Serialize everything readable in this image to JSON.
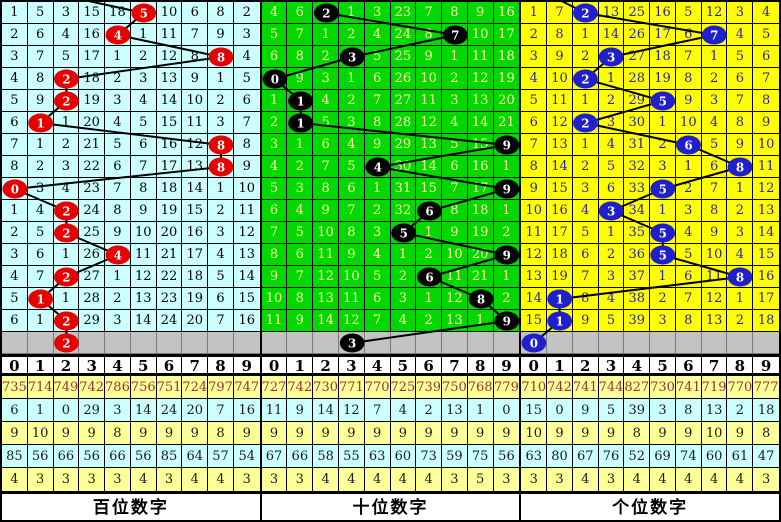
{
  "chart": {
    "columns": [
      "0",
      "1",
      "2",
      "3",
      "4",
      "5",
      "6",
      "7",
      "8",
      "9"
    ],
    "panels": [
      {
        "label": "百位数字",
        "panel_bg": "#ccffff",
        "cell_text_color": "#000000",
        "ball_color": "#e60000",
        "rows": [
          {
            "ball_col": 5,
            "cells": [
              "1",
              "5",
              "3",
              "15",
              "18",
              "5",
              "10",
              "6",
              "8",
              "2"
            ]
          },
          {
            "ball_col": 4,
            "cells": [
              "2",
              "6",
              "4",
              "16",
              "4",
              "1",
              "11",
              "7",
              "9",
              "3"
            ]
          },
          {
            "ball_col": 8,
            "cells": [
              "3",
              "7",
              "5",
              "17",
              "1",
              "2",
              "12",
              "8",
              "8",
              "4"
            ]
          },
          {
            "ball_col": 2,
            "cells": [
              "4",
              "8",
              "2",
              "18",
              "2",
              "3",
              "13",
              "9",
              "1",
              "5"
            ]
          },
          {
            "ball_col": 2,
            "cells": [
              "5",
              "9",
              "2",
              "19",
              "3",
              "4",
              "14",
              "10",
              "2",
              "6"
            ]
          },
          {
            "ball_col": 1,
            "cells": [
              "6",
              "1",
              "1",
              "20",
              "4",
              "5",
              "15",
              "11",
              "3",
              "7"
            ]
          },
          {
            "ball_col": 8,
            "cells": [
              "7",
              "1",
              "2",
              "21",
              "5",
              "6",
              "16",
              "12",
              "8",
              "8"
            ]
          },
          {
            "ball_col": 8,
            "cells": [
              "8",
              "2",
              "3",
              "22",
              "6",
              "7",
              "17",
              "13",
              "8",
              "9"
            ]
          },
          {
            "ball_col": 0,
            "cells": [
              "0",
              "3",
              "4",
              "23",
              "7",
              "8",
              "18",
              "14",
              "1",
              "10"
            ]
          },
          {
            "ball_col": 2,
            "cells": [
              "1",
              "4",
              "2",
              "24",
              "8",
              "9",
              "19",
              "15",
              "2",
              "11"
            ]
          },
          {
            "ball_col": 2,
            "cells": [
              "2",
              "5",
              "2",
              "25",
              "9",
              "10",
              "20",
              "16",
              "3",
              "12"
            ]
          },
          {
            "ball_col": 4,
            "cells": [
              "3",
              "6",
              "1",
              "26",
              "4",
              "11",
              "21",
              "17",
              "4",
              "13"
            ]
          },
          {
            "ball_col": 2,
            "cells": [
              "4",
              "7",
              "2",
              "27",
              "1",
              "12",
              "22",
              "18",
              "5",
              "14"
            ]
          },
          {
            "ball_col": 1,
            "cells": [
              "5",
              "1",
              "1",
              "28",
              "2",
              "13",
              "23",
              "19",
              "6",
              "15"
            ]
          },
          {
            "ball_col": 2,
            "cells": [
              "6",
              "1",
              "2",
              "29",
              "3",
              "14",
              "24",
              "20",
              "7",
              "16"
            ]
          }
        ],
        "predicted_col": 2,
        "predicted_digit": "2",
        "stats": [
          [
            "735",
            "714",
            "749",
            "742",
            "786",
            "756",
            "751",
            "724",
            "797",
            "747"
          ],
          [
            "6",
            "1",
            "0",
            "29",
            "3",
            "14",
            "24",
            "20",
            "7",
            "16"
          ],
          [
            "9",
            "10",
            "9",
            "9",
            "8",
            "9",
            "9",
            "9",
            "8",
            "9"
          ],
          [
            "85",
            "56",
            "66",
            "56",
            "66",
            "56",
            "85",
            "64",
            "57",
            "54"
          ],
          [
            "4",
            "3",
            "3",
            "3",
            "3",
            "4",
            "3",
            "4",
            "4",
            "3"
          ]
        ]
      },
      {
        "label": "十位数字",
        "panel_bg": "#00d800",
        "cell_text_color": "#ffffaa",
        "ball_color": "#000000",
        "rows": [
          {
            "ball_col": 2,
            "cells": [
              "4",
              "6",
              "2",
              "1",
              "3",
              "23",
              "7",
              "8",
              "9",
              "16"
            ]
          },
          {
            "ball_col": 7,
            "cells": [
              "5",
              "7",
              "1",
              "2",
              "4",
              "24",
              "8",
              "7",
              "10",
              "17"
            ]
          },
          {
            "ball_col": 3,
            "cells": [
              "6",
              "8",
              "2",
              "3",
              "5",
              "25",
              "9",
              "1",
              "11",
              "18"
            ]
          },
          {
            "ball_col": 0,
            "cells": [
              "0",
              "9",
              "3",
              "1",
              "6",
              "26",
              "10",
              "2",
              "12",
              "19"
            ]
          },
          {
            "ball_col": 1,
            "cells": [
              "1",
              "1",
              "4",
              "2",
              "7",
              "27",
              "11",
              "3",
              "13",
              "20"
            ]
          },
          {
            "ball_col": 1,
            "cells": [
              "2",
              "1",
              "5",
              "3",
              "8",
              "28",
              "12",
              "4",
              "14",
              "21"
            ]
          },
          {
            "ball_col": 9,
            "cells": [
              "3",
              "1",
              "6",
              "4",
              "9",
              "29",
              "13",
              "5",
              "15",
              "9"
            ]
          },
          {
            "ball_col": 4,
            "cells": [
              "4",
              "2",
              "7",
              "5",
              "4",
              "30",
              "14",
              "6",
              "16",
              "1"
            ]
          },
          {
            "ball_col": 9,
            "cells": [
              "5",
              "3",
              "8",
              "6",
              "1",
              "31",
              "15",
              "7",
              "17",
              "9"
            ]
          },
          {
            "ball_col": 6,
            "cells": [
              "6",
              "4",
              "9",
              "7",
              "2",
              "32",
              "6",
              "8",
              "18",
              "1"
            ]
          },
          {
            "ball_col": 5,
            "cells": [
              "7",
              "5",
              "10",
              "8",
              "3",
              "5",
              "1",
              "9",
              "19",
              "2"
            ]
          },
          {
            "ball_col": 9,
            "cells": [
              "8",
              "6",
              "11",
              "9",
              "4",
              "1",
              "2",
              "10",
              "20",
              "9"
            ]
          },
          {
            "ball_col": 6,
            "cells": [
              "9",
              "7",
              "12",
              "10",
              "5",
              "2",
              "6",
              "11",
              "21",
              "1"
            ]
          },
          {
            "ball_col": 8,
            "cells": [
              "10",
              "8",
              "13",
              "11",
              "6",
              "3",
              "1",
              "12",
              "8",
              "2"
            ]
          },
          {
            "ball_col": 9,
            "cells": [
              "11",
              "9",
              "14",
              "12",
              "7",
              "4",
              "2",
              "13",
              "1",
              "9"
            ]
          }
        ],
        "predicted_col": 3,
        "predicted_digit": "3",
        "stats": [
          [
            "727",
            "742",
            "730",
            "771",
            "770",
            "725",
            "739",
            "750",
            "768",
            "779"
          ],
          [
            "11",
            "9",
            "14",
            "12",
            "7",
            "4",
            "2",
            "13",
            "1",
            "0"
          ],
          [
            "9",
            "9",
            "9",
            "9",
            "9",
            "9",
            "9",
            "9",
            "9",
            "9"
          ],
          [
            "67",
            "66",
            "58",
            "55",
            "63",
            "60",
            "73",
            "59",
            "75",
            "56"
          ],
          [
            "3",
            "3",
            "4",
            "4",
            "4",
            "4",
            "4",
            "3",
            "5",
            "3"
          ]
        ]
      },
      {
        "label": "个位数字",
        "panel_bg": "#ffff00",
        "cell_text_color": "#26269b",
        "ball_color": "#1f1fcc",
        "rows": [
          {
            "ball_col": 2,
            "cells": [
              "1",
              "7",
              "2",
              "13",
              "25",
              "16",
              "5",
              "12",
              "3",
              "4"
            ]
          },
          {
            "ball_col": 7,
            "cells": [
              "2",
              "8",
              "1",
              "14",
              "26",
              "17",
              "6",
              "7",
              "4",
              "5"
            ]
          },
          {
            "ball_col": 3,
            "cells": [
              "3",
              "9",
              "2",
              "3",
              "27",
              "18",
              "7",
              "1",
              "5",
              "6"
            ]
          },
          {
            "ball_col": 2,
            "cells": [
              "4",
              "10",
              "2",
              "1",
              "28",
              "19",
              "8",
              "2",
              "6",
              "7"
            ]
          },
          {
            "ball_col": 5,
            "cells": [
              "5",
              "11",
              "1",
              "2",
              "29",
              "5",
              "9",
              "3",
              "7",
              "8"
            ]
          },
          {
            "ball_col": 2,
            "cells": [
              "6",
              "12",
              "2",
              "3",
              "30",
              "1",
              "10",
              "4",
              "8",
              "9"
            ]
          },
          {
            "ball_col": 6,
            "cells": [
              "7",
              "13",
              "1",
              "4",
              "31",
              "2",
              "6",
              "5",
              "9",
              "10"
            ]
          },
          {
            "ball_col": 8,
            "cells": [
              "8",
              "14",
              "2",
              "5",
              "32",
              "3",
              "1",
              "6",
              "8",
              "11"
            ]
          },
          {
            "ball_col": 5,
            "cells": [
              "9",
              "15",
              "3",
              "6",
              "33",
              "5",
              "2",
              "7",
              "1",
              "12"
            ]
          },
          {
            "ball_col": 3,
            "cells": [
              "10",
              "16",
              "4",
              "3",
              "34",
              "1",
              "3",
              "8",
              "2",
              "13"
            ]
          },
          {
            "ball_col": 5,
            "cells": [
              "11",
              "17",
              "5",
              "1",
              "35",
              "5",
              "4",
              "9",
              "3",
              "14"
            ]
          },
          {
            "ball_col": 5,
            "cells": [
              "12",
              "18",
              "6",
              "2",
              "36",
              "5",
              "5",
              "10",
              "4",
              "15"
            ]
          },
          {
            "ball_col": 8,
            "cells": [
              "13",
              "19",
              "7",
              "3",
              "37",
              "1",
              "6",
              "11",
              "8",
              "16"
            ]
          },
          {
            "ball_col": 1,
            "cells": [
              "14",
              "1",
              "8",
              "4",
              "38",
              "2",
              "7",
              "12",
              "1",
              "17"
            ]
          },
          {
            "ball_col": 1,
            "cells": [
              "15",
              "1",
              "9",
              "5",
              "39",
              "3",
              "8",
              "13",
              "2",
              "18"
            ]
          }
        ],
        "predicted_col": 0,
        "predicted_digit": "0",
        "stats": [
          [
            "710",
            "742",
            "741",
            "744",
            "827",
            "730",
            "741",
            "719",
            "770",
            "777"
          ],
          [
            "15",
            "0",
            "9",
            "5",
            "39",
            "3",
            "8",
            "13",
            "2",
            "18"
          ],
          [
            "10",
            "9",
            "9",
            "9",
            "8",
            "9",
            "9",
            "10",
            "9",
            "8"
          ],
          [
            "63",
            "80",
            "67",
            "76",
            "52",
            "69",
            "74",
            "60",
            "61",
            "47"
          ],
          [
            "3",
            "3",
            "4",
            "3",
            "4",
            "4",
            "4",
            "4",
            "4",
            "3"
          ]
        ]
      }
    ]
  },
  "chart_data": {
    "type": "table",
    "title": "3D digit trend chart (hundreds / tens / units)",
    "columns": [
      "0",
      "1",
      "2",
      "3",
      "4",
      "5",
      "6",
      "7",
      "8",
      "9"
    ],
    "series": [
      {
        "name": "百位数字",
        "drawn_digits": [
          5,
          4,
          8,
          2,
          2,
          1,
          8,
          8,
          0,
          2,
          2,
          4,
          2,
          1,
          2
        ],
        "predicted_digit": 2
      },
      {
        "name": "十位数字",
        "drawn_digits": [
          2,
          7,
          3,
          0,
          1,
          1,
          9,
          4,
          9,
          6,
          5,
          9,
          6,
          8,
          9
        ],
        "predicted_digit": 3
      },
      {
        "name": "个位数字",
        "drawn_digits": [
          2,
          7,
          3,
          2,
          5,
          2,
          6,
          8,
          5,
          3,
          5,
          5,
          8,
          1,
          1
        ],
        "predicted_digit": 0
      }
    ],
    "legend_position": "none",
    "grid": true
  }
}
